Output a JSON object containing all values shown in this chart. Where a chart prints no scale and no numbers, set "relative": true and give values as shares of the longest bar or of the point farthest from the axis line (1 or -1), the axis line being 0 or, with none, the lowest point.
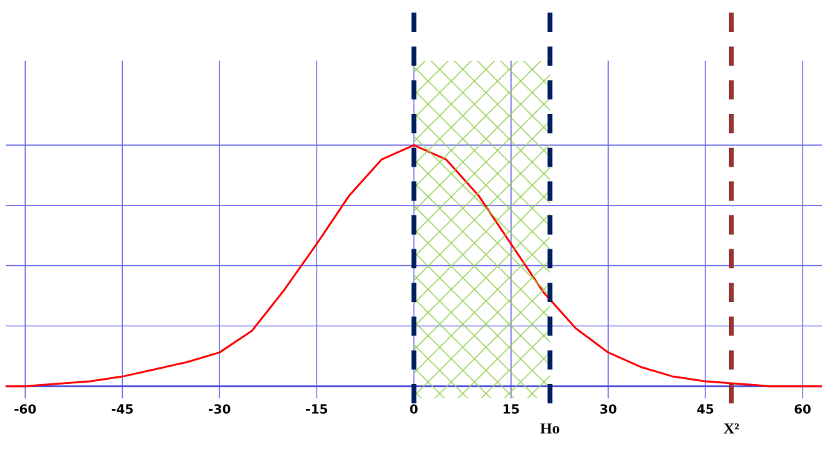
{
  "chart_data": {
    "type": "line",
    "relative": true,
    "x": [
      -63,
      -60,
      -55,
      -50,
      -45,
      -40,
      -35,
      -30,
      -25,
      -20,
      -15,
      -10,
      -5,
      0,
      5,
      10,
      15,
      20,
      25,
      30,
      35,
      40,
      45,
      50,
      55,
      60,
      63
    ],
    "series": [
      {
        "color": "#ff0000",
        "values": [
          0.0,
          0.0,
          0.01,
          0.02,
          0.04,
          0.07,
          0.1,
          0.14,
          0.23,
          0.4,
          0.59,
          0.79,
          0.94,
          1.0,
          0.94,
          0.79,
          0.59,
          0.39,
          0.24,
          0.14,
          0.08,
          0.04,
          0.02,
          0.01,
          0.0,
          0.0,
          0.0
        ]
      }
    ],
    "xlim": [
      -63,
      63
    ],
    "xticks": [
      -60,
      -45,
      -30,
      -15,
      0,
      15,
      30,
      45,
      60
    ],
    "grid": true,
    "tick_labels": "x",
    "marker": "none",
    "line_style": "solid",
    "bands": [
      {
        "axis": "x",
        "from": 0,
        "to": 21,
        "color": "#92d050"
      }
    ],
    "ref_lines": [
      {
        "axis": "x",
        "value": 0,
        "color": "#002060",
        "line_style": "dashed"
      },
      {
        "axis": "x",
        "value": 21,
        "label": "Ho",
        "color": "#002060",
        "line_style": "dashed"
      },
      {
        "axis": "x",
        "value": 49,
        "label": "X²",
        "color": "#953735",
        "line_style": "dashed"
      }
    ]
  }
}
